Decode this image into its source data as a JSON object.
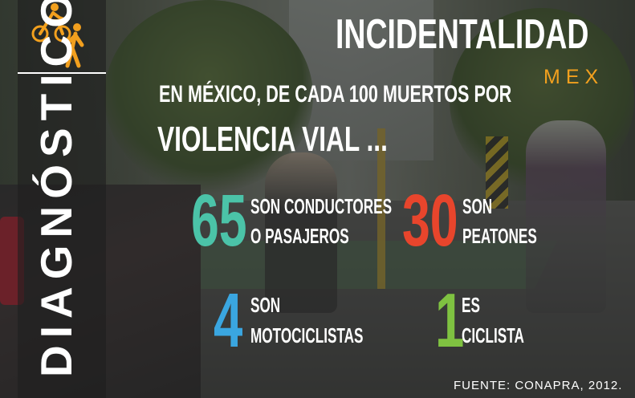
{
  "header": {
    "title": "INCIDENTALIDAD",
    "subtitle": "MEX"
  },
  "side": {
    "vertical_title": "DIAGNÓSTICO",
    "icon": "cyclist-and-pedestrian-icon"
  },
  "intro": {
    "line1": "EN MÉXICO, DE CADA 100 MUERTOS POR",
    "line2": "VIOLENCIA VIAL ..."
  },
  "stats": [
    {
      "number": "65",
      "line1": "SON CONDUCTORES",
      "line2": "O PASAJEROS",
      "color": "#4bc3a8"
    },
    {
      "number": "30",
      "line1": "SON",
      "line2": "PEATONES",
      "color": "#e8452c"
    },
    {
      "number": "4",
      "line1": "SON",
      "line2": "MOTOCICLISTAS",
      "color": "#3aa6e0"
    },
    {
      "number": "1",
      "line1": "ES",
      "line2": "CICLISTA",
      "color": "#7fc241"
    }
  ],
  "source": "FUENTE: CONAPRA, 2012.",
  "colors": {
    "accent_orange": "#f2a01e",
    "text": "#ffffff"
  }
}
